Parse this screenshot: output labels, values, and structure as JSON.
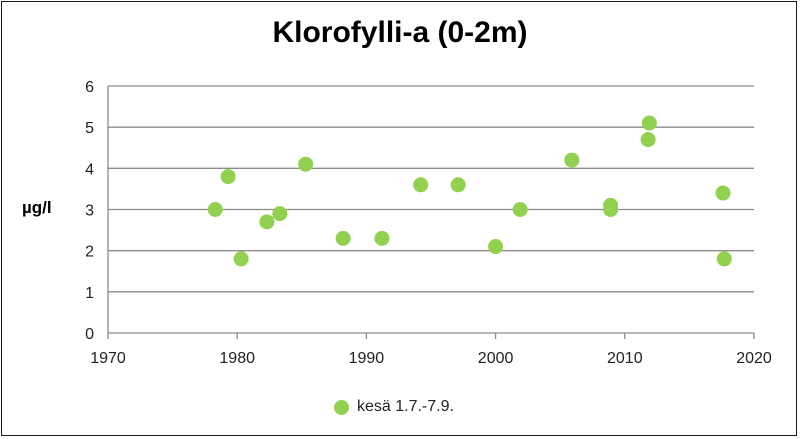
{
  "chart_data": {
    "type": "scatter",
    "title": "Klorofylli-a (0-2m)",
    "xlabel": "",
    "ylabel": "µg/l",
    "xlim": [
      1970,
      2020
    ],
    "ylim": [
      0,
      6
    ],
    "x_ticks": [
      1970,
      1980,
      1990,
      2000,
      2010,
      2020
    ],
    "y_ticks": [
      0,
      1,
      2,
      3,
      4,
      5,
      6
    ],
    "grid": "horizontal",
    "legend_position": "bottom",
    "series": [
      {
        "name": "kesä 1.7.-7.9.",
        "color": "#92d050",
        "points": [
          {
            "x": 1978.3,
            "y": 3.0
          },
          {
            "x": 1979.3,
            "y": 3.8
          },
          {
            "x": 1980.3,
            "y": 1.8
          },
          {
            "x": 1982.3,
            "y": 2.7
          },
          {
            "x": 1983.3,
            "y": 2.9
          },
          {
            "x": 1985.3,
            "y": 4.1
          },
          {
            "x": 1988.2,
            "y": 2.3
          },
          {
            "x": 1991.2,
            "y": 2.3
          },
          {
            "x": 1994.2,
            "y": 3.6
          },
          {
            "x": 1997.1,
            "y": 3.6
          },
          {
            "x": 2000.0,
            "y": 2.1
          },
          {
            "x": 2001.9,
            "y": 3.0
          },
          {
            "x": 2005.9,
            "y": 4.2
          },
          {
            "x": 2008.9,
            "y": 3.1
          },
          {
            "x": 2008.9,
            "y": 3.0
          },
          {
            "x": 2011.8,
            "y": 4.7
          },
          {
            "x": 2011.9,
            "y": 5.1
          },
          {
            "x": 2017.6,
            "y": 3.4
          },
          {
            "x": 2017.7,
            "y": 1.8
          }
        ]
      }
    ]
  }
}
